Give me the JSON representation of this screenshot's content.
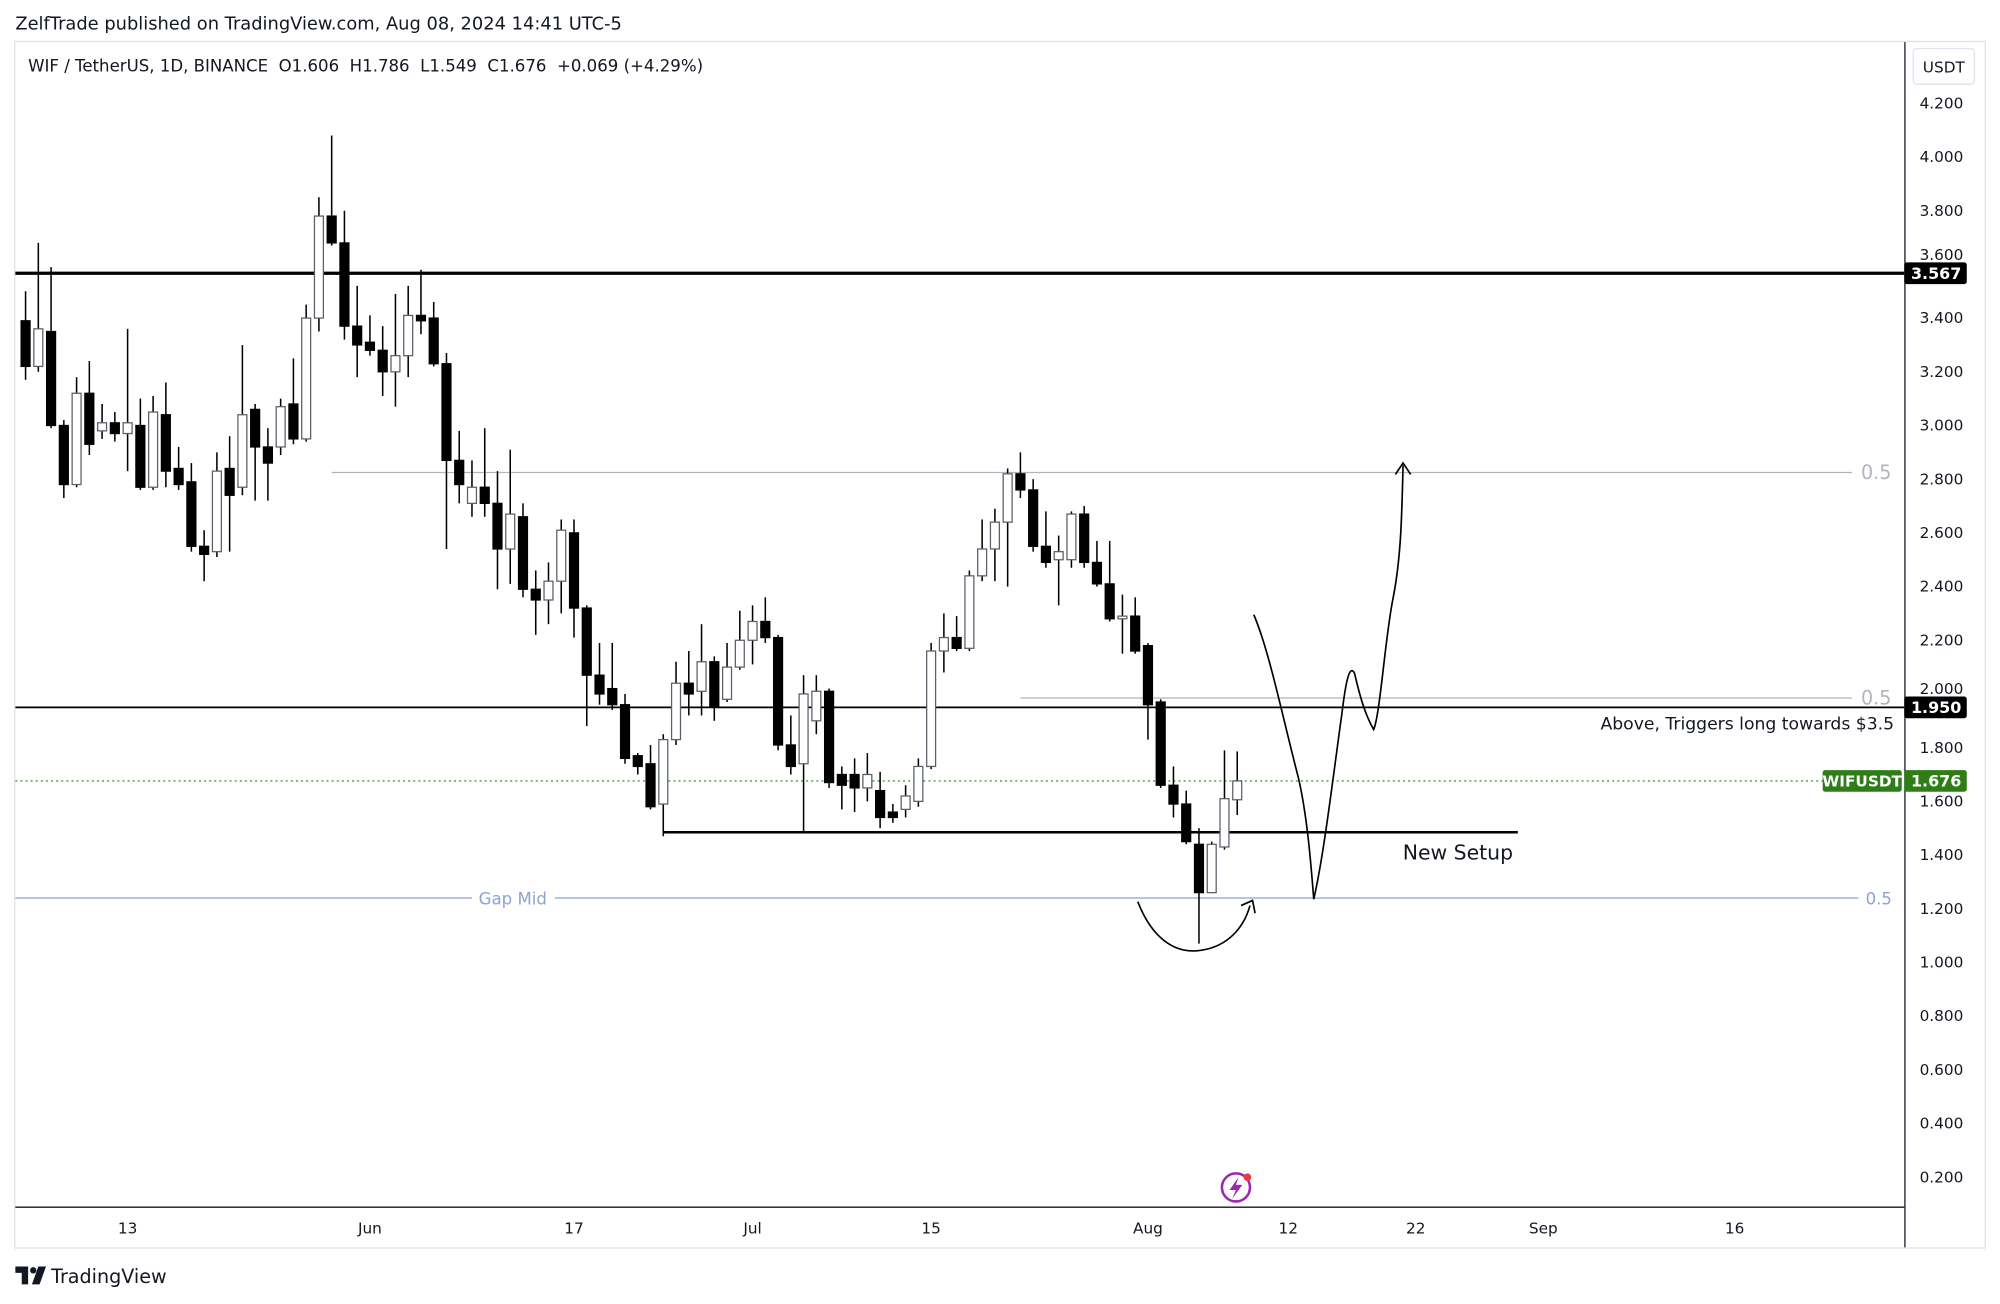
{
  "header": {
    "published": "ZelfTrade published on TradingView.com, Aug 08, 2024 14:41 UTC-5"
  },
  "legend": {
    "text": "WIF / TetherUS, 1D, BINANCE  O1.606  H1.786  L1.549  C1.676  +0.069 (+4.29%)"
  },
  "price_axis": {
    "currency": "USDT",
    "ticks": [
      "4.200",
      "4.000",
      "3.800",
      "3.600",
      "3.400",
      "3.200",
      "3.000",
      "2.800",
      "2.600",
      "2.400",
      "2.200",
      "2.000",
      "1.800",
      "1.600",
      "1.400",
      "1.200",
      "1.000",
      "0.800",
      "0.600",
      "0.400",
      "0.200"
    ]
  },
  "time_axis": {
    "ticks": [
      {
        "label": "13",
        "day": 8
      },
      {
        "label": "Jun",
        "day": 27
      },
      {
        "label": "17",
        "day": 43
      },
      {
        "label": "Jul",
        "day": 57
      },
      {
        "label": "15",
        "day": 71
      },
      {
        "label": "Aug",
        "day": 88
      },
      {
        "label": "12",
        "day": 99
      },
      {
        "label": "22",
        "day": 109
      },
      {
        "label": "Sep",
        "day": 119
      },
      {
        "label": "16",
        "day": 134
      }
    ]
  },
  "badges": {
    "resistance": "3.567",
    "trigger": "1.950",
    "symbol": "WIFUSDT",
    "last_price": "1.676"
  },
  "drawings": {
    "resistance_level": 3.567,
    "trigger_level": 1.95,
    "last_price_level": 1.676,
    "fib_upper": {
      "level": 2.825,
      "label": "0.5"
    },
    "fib_mid": {
      "level": 1.985,
      "label": "0.5"
    },
    "gap_mid": {
      "level": 1.24,
      "label": "Gap Mid",
      "ratio_label": "0.5"
    },
    "setup_level": 1.485,
    "trigger_note": "Above, Triggers long towards $3.5",
    "setup_note": "New Setup"
  },
  "colors": {
    "up_body": "#ffffff",
    "down_body": "#000000",
    "wick": "#000000",
    "badge_black": "#000000",
    "badge_green": "#2e7d17",
    "fib_grey": "#b2b5be",
    "gap_blue": "#8aa4d6",
    "last_price_line": "#3a9a3a",
    "lightning": "#9c27b0"
  },
  "footer": {
    "brand": "TradingView"
  },
  "chart_data": {
    "type": "candlestick",
    "title": "WIF / TetherUS, 1D, BINANCE",
    "start_date": "2024-05-05",
    "end_date": "2024-08-08",
    "ylim": [
      0.1,
      4.35
    ],
    "ohlc": [
      [
        3.39,
        3.5,
        3.17,
        3.22
      ],
      [
        3.22,
        3.68,
        3.2,
        3.36
      ],
      [
        3.35,
        3.59,
        2.99,
        3.0
      ],
      [
        3.0,
        3.02,
        2.73,
        2.78
      ],
      [
        2.78,
        3.18,
        2.77,
        3.12
      ],
      [
        3.12,
        3.24,
        2.89,
        2.93
      ],
      [
        2.98,
        3.08,
        2.95,
        3.01
      ],
      [
        3.01,
        3.05,
        2.94,
        2.97
      ],
      [
        2.97,
        3.36,
        2.83,
        3.01
      ],
      [
        3.0,
        3.1,
        2.76,
        2.77
      ],
      [
        2.77,
        3.11,
        2.76,
        3.05
      ],
      [
        3.04,
        3.16,
        2.77,
        2.83
      ],
      [
        2.84,
        2.92,
        2.76,
        2.78
      ],
      [
        2.79,
        2.86,
        2.53,
        2.55
      ],
      [
        2.55,
        2.61,
        2.42,
        2.52
      ],
      [
        2.53,
        2.9,
        2.51,
        2.83
      ],
      [
        2.84,
        2.96,
        2.53,
        2.74
      ],
      [
        2.77,
        3.3,
        2.74,
        3.04
      ],
      [
        3.06,
        3.08,
        2.72,
        2.92
      ],
      [
        2.92,
        2.99,
        2.72,
        2.86
      ],
      [
        2.92,
        3.1,
        2.89,
        3.07
      ],
      [
        3.08,
        3.25,
        2.93,
        2.95
      ],
      [
        2.95,
        3.45,
        2.94,
        3.4
      ],
      [
        3.4,
        3.85,
        3.35,
        3.78
      ],
      [
        3.78,
        4.08,
        3.67,
        3.68
      ],
      [
        3.68,
        3.8,
        3.32,
        3.37
      ],
      [
        3.37,
        3.52,
        3.18,
        3.3
      ],
      [
        3.31,
        3.41,
        3.26,
        3.28
      ],
      [
        3.28,
        3.37,
        3.11,
        3.2
      ],
      [
        3.2,
        3.49,
        3.07,
        3.26
      ],
      [
        3.26,
        3.52,
        3.18,
        3.41
      ],
      [
        3.41,
        3.58,
        3.34,
        3.39
      ],
      [
        3.4,
        3.46,
        3.22,
        3.23
      ],
      [
        3.23,
        3.27,
        2.54,
        2.87
      ],
      [
        2.87,
        2.98,
        2.71,
        2.78
      ],
      [
        2.71,
        2.87,
        2.66,
        2.77
      ],
      [
        2.77,
        2.99,
        2.66,
        2.71
      ],
      [
        2.71,
        2.83,
        2.39,
        2.54
      ],
      [
        2.54,
        2.91,
        2.41,
        2.67
      ],
      [
        2.66,
        2.71,
        2.36,
        2.39
      ],
      [
        2.39,
        2.46,
        2.22,
        2.35
      ],
      [
        2.35,
        2.49,
        2.26,
        2.42
      ],
      [
        2.42,
        2.65,
        2.3,
        2.61
      ],
      [
        2.6,
        2.65,
        2.21,
        2.32
      ],
      [
        2.32,
        2.33,
        1.88,
        2.07
      ],
      [
        2.07,
        2.19,
        1.96,
        2.0
      ],
      [
        2.02,
        2.19,
        1.94,
        1.96
      ],
      [
        1.96,
        2.0,
        1.74,
        1.76
      ],
      [
        1.77,
        1.78,
        1.7,
        1.73
      ],
      [
        1.74,
        1.81,
        1.57,
        1.58
      ],
      [
        1.59,
        1.85,
        1.47,
        1.83
      ],
      [
        1.83,
        2.12,
        1.81,
        2.04
      ],
      [
        2.04,
        2.16,
        1.92,
        2.0
      ],
      [
        2.01,
        2.26,
        1.92,
        2.12
      ],
      [
        2.12,
        2.14,
        1.9,
        1.95
      ],
      [
        1.98,
        2.19,
        1.97,
        2.1
      ],
      [
        2.1,
        2.31,
        2.09,
        2.2
      ],
      [
        2.2,
        2.33,
        2.11,
        2.27
      ],
      [
        2.27,
        2.36,
        2.19,
        2.21
      ],
      [
        2.21,
        2.22,
        1.79,
        1.81
      ],
      [
        1.81,
        1.92,
        1.7,
        1.73
      ],
      [
        1.74,
        2.07,
        1.49,
        2.0
      ],
      [
        1.9,
        2.07,
        1.85,
        2.01
      ],
      [
        2.01,
        2.02,
        1.65,
        1.67
      ],
      [
        1.7,
        1.73,
        1.57,
        1.66
      ],
      [
        1.7,
        1.76,
        1.56,
        1.65
      ],
      [
        1.65,
        1.78,
        1.6,
        1.7
      ],
      [
        1.64,
        1.71,
        1.5,
        1.54
      ],
      [
        1.56,
        1.59,
        1.52,
        1.54
      ],
      [
        1.57,
        1.66,
        1.54,
        1.62
      ],
      [
        1.6,
        1.76,
        1.58,
        1.73
      ],
      [
        1.73,
        2.19,
        1.72,
        2.16
      ],
      [
        2.16,
        2.3,
        2.08,
        2.21
      ],
      [
        2.21,
        2.29,
        2.16,
        2.17
      ],
      [
        2.17,
        2.46,
        2.16,
        2.44
      ],
      [
        2.44,
        2.65,
        2.42,
        2.54
      ],
      [
        2.54,
        2.69,
        2.42,
        2.64
      ],
      [
        2.64,
        2.84,
        2.4,
        2.82
      ],
      [
        2.82,
        2.9,
        2.73,
        2.76
      ],
      [
        2.76,
        2.8,
        2.53,
        2.55
      ],
      [
        2.55,
        2.68,
        2.47,
        2.49
      ],
      [
        2.5,
        2.59,
        2.33,
        2.53
      ],
      [
        2.5,
        2.68,
        2.47,
        2.67
      ],
      [
        2.67,
        2.7,
        2.47,
        2.49
      ],
      [
        2.49,
        2.57,
        2.4,
        2.41
      ],
      [
        2.41,
        2.57,
        2.27,
        2.28
      ],
      [
        2.28,
        2.37,
        2.15,
        2.29
      ],
      [
        2.29,
        2.36,
        2.15,
        2.16
      ],
      [
        2.18,
        2.19,
        1.83,
        1.96
      ],
      [
        1.97,
        1.98,
        1.65,
        1.66
      ],
      [
        1.66,
        1.73,
        1.54,
        1.59
      ],
      [
        1.59,
        1.64,
        1.44,
        1.45
      ],
      [
        1.44,
        1.5,
        1.07,
        1.26
      ],
      [
        1.26,
        1.45,
        1.26,
        1.44
      ],
      [
        1.43,
        1.79,
        1.42,
        1.61
      ],
      [
        1.606,
        1.786,
        1.549,
        1.676
      ]
    ]
  }
}
